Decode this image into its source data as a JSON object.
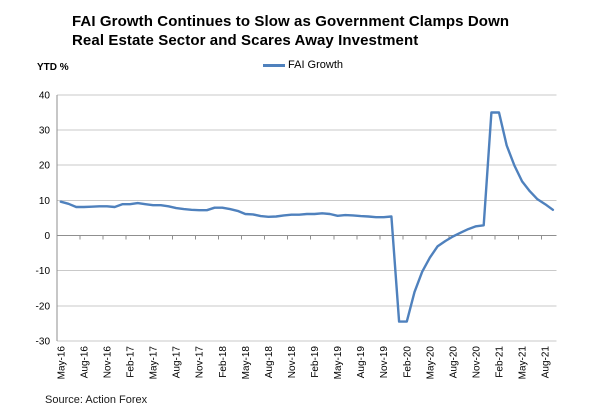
{
  "page": {
    "title_line1": "FAI Growth Continues to Slow as Government Clamps Down",
    "title_line2": "Real Estate Sector and Scares Away Investment",
    "y_unit_label": "YTD %",
    "legend_label": "FAI Growth",
    "source": "Source: Action Forex"
  },
  "chart_data": {
    "type": "line",
    "title": "FAI Growth Continues to Slow as Government Clamps Down Real Estate Sector and Scares Away Investment",
    "ylabel": "YTD %",
    "legend": [
      "FAI Growth"
    ],
    "legend_position": "top-center",
    "grid": true,
    "ylim": [
      -30,
      40
    ],
    "ytick_step": 10,
    "x_tick_label_every": 3,
    "x_tick_labels": [
      "May-16",
      "Aug-16",
      "Nov-16",
      "Feb-17",
      "May-17",
      "Aug-17",
      "Nov-17",
      "Feb-18",
      "May-18",
      "Aug-18",
      "Nov-18",
      "Feb-19",
      "May-19",
      "Aug-19",
      "Nov-19",
      "Feb-20",
      "May-20",
      "Aug-20",
      "Nov-20",
      "Feb-21",
      "May-21",
      "Aug-21"
    ],
    "x": [
      "May-16",
      "Jun-16",
      "Jul-16",
      "Aug-16",
      "Sep-16",
      "Oct-16",
      "Nov-16",
      "Dec-16",
      "Jan-17",
      "Feb-17",
      "Mar-17",
      "Apr-17",
      "May-17",
      "Jun-17",
      "Jul-17",
      "Aug-17",
      "Sep-17",
      "Oct-17",
      "Nov-17",
      "Dec-17",
      "Jan-18",
      "Feb-18",
      "Mar-18",
      "Apr-18",
      "May-18",
      "Jun-18",
      "Jul-18",
      "Aug-18",
      "Sep-18",
      "Oct-18",
      "Nov-18",
      "Dec-18",
      "Jan-19",
      "Feb-19",
      "Mar-19",
      "Apr-19",
      "May-19",
      "Jun-19",
      "Jul-19",
      "Aug-19",
      "Sep-19",
      "Oct-19",
      "Nov-19",
      "Dec-19",
      "Jan-20",
      "Feb-20",
      "Mar-20",
      "Apr-20",
      "May-20",
      "Jun-20",
      "Jul-20",
      "Aug-20",
      "Sep-20",
      "Oct-20",
      "Nov-20",
      "Dec-20",
      "Jan-21",
      "Feb-21",
      "Mar-21",
      "Apr-21",
      "May-21",
      "Jun-21",
      "Jul-21",
      "Aug-21",
      "Sep-21"
    ],
    "series": [
      {
        "name": "FAI Growth",
        "color": "#4F81BD",
        "values": [
          9.6,
          9.0,
          8.1,
          8.1,
          8.2,
          8.3,
          8.3,
          8.1,
          8.9,
          8.9,
          9.2,
          8.9,
          8.6,
          8.6,
          8.3,
          7.8,
          7.5,
          7.3,
          7.2,
          7.2,
          7.9,
          7.9,
          7.5,
          7.0,
          6.1,
          6.0,
          5.5,
          5.3,
          5.4,
          5.7,
          5.9,
          5.9,
          6.1,
          6.1,
          6.3,
          6.1,
          5.6,
          5.8,
          5.7,
          5.5,
          5.4,
          5.2,
          5.2,
          5.4,
          -24.5,
          -24.5,
          -16.1,
          -10.3,
          -6.3,
          -3.1,
          -1.6,
          -0.3,
          0.8,
          1.8,
          2.6,
          2.9,
          35.0,
          35.0,
          25.6,
          19.9,
          15.4,
          12.6,
          10.3,
          8.9,
          7.3
        ]
      }
    ],
    "colors": {
      "line": "#4F81BD",
      "gridline": "#C9C9C9",
      "axis": "#8F8F8F"
    }
  }
}
